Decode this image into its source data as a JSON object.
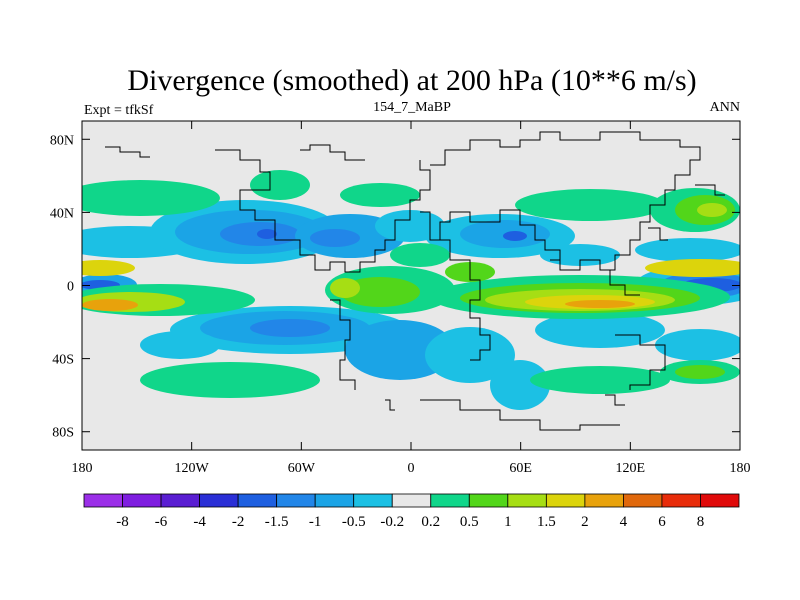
{
  "chart_data": {
    "type": "heatmap",
    "title": "Divergence (smoothed) at 200 hPa (10**6 m/s)",
    "subtitle_left": "Expt = tfkSf",
    "subtitle_center": "154_7_MaBP",
    "subtitle_right": "ANN",
    "xlim": [
      -180,
      180
    ],
    "ylim": [
      -90,
      90
    ],
    "x_ticks": [
      {
        "value": -180,
        "label": "180"
      },
      {
        "value": -120,
        "label": "120W"
      },
      {
        "value": -60,
        "label": "60W"
      },
      {
        "value": 0,
        "label": "0"
      },
      {
        "value": 60,
        "label": "60E"
      },
      {
        "value": 120,
        "label": "120E"
      },
      {
        "value": 180,
        "label": "180"
      }
    ],
    "y_ticks": [
      {
        "value": 80,
        "label": "80N"
      },
      {
        "value": 40,
        "label": "40N"
      },
      {
        "value": 0,
        "label": "0"
      },
      {
        "value": -40,
        "label": "40S"
      },
      {
        "value": -80,
        "label": "80S"
      }
    ],
    "colorbar": {
      "colors": [
        "#9b2fe8",
        "#7f1ee0",
        "#5a1ed2",
        "#2a2fd6",
        "#1e5fe0",
        "#2286e8",
        "#1ba4e6",
        "#1cc0e4",
        "#e8e8e8",
        "#10d68a",
        "#52d61a",
        "#a6de14",
        "#dcd40c",
        "#e8a20c",
        "#e0680c",
        "#e82c0a",
        "#e00a0a"
      ],
      "labels": [
        "-8",
        "-6",
        "-4",
        "-2",
        "-1.5",
        "-1",
        "-0.5",
        "-0.2",
        "0.2",
        "0.5",
        "1",
        "1.5",
        "2",
        "4",
        "6",
        "8"
      ]
    }
  }
}
